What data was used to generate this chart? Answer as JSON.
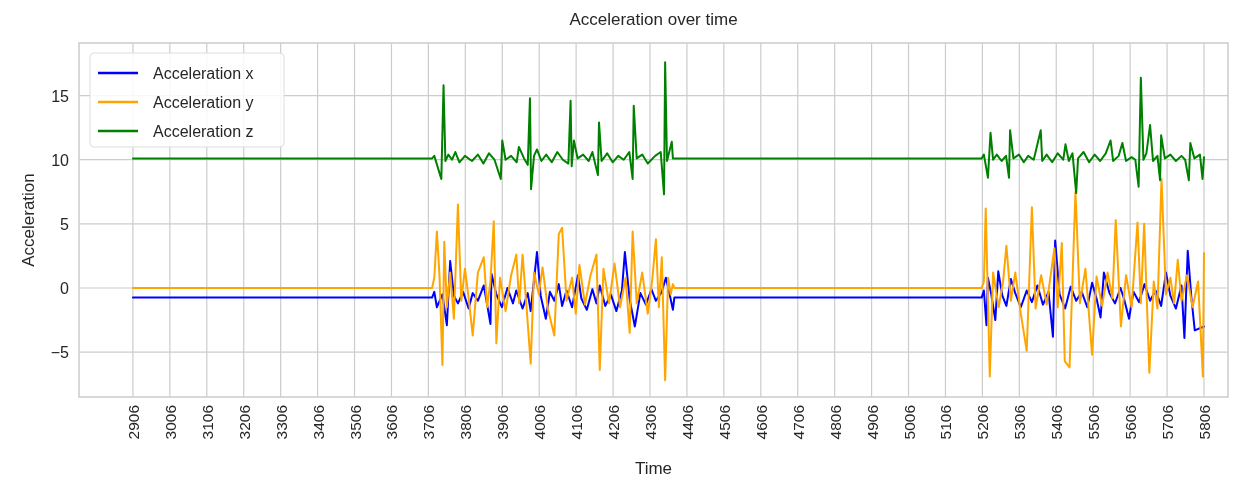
{
  "chart_data": {
    "type": "line",
    "title": "Acceleration over time",
    "xlabel": "Time",
    "ylabel": "Acceleration",
    "xlim": [
      2760,
      5871
    ],
    "ylim": [
      -8.5,
      19.1
    ],
    "xticks": [
      2906,
      3006,
      3106,
      3206,
      3306,
      3406,
      3506,
      3606,
      3706,
      3806,
      3906,
      4006,
      4106,
      4206,
      4306,
      4406,
      4506,
      4606,
      4706,
      4806,
      4906,
      5006,
      5106,
      5206,
      5306,
      5406,
      5506,
      5606,
      5706,
      5806
    ],
    "yticks": [
      -5,
      0,
      5,
      10,
      15
    ],
    "grid": true,
    "legend": "top left",
    "line_style": "solid",
    "marker": "none",
    "series": [
      {
        "name": "Acceleration x",
        "color": "#0000ff",
        "x": [
          2906,
          3716,
          3722,
          3729,
          3744,
          3756,
          3765,
          3775,
          3786,
          3800,
          3815,
          3826,
          3840,
          3856,
          3865,
          3874,
          3877,
          3890,
          3905,
          3920,
          3935,
          3944,
          3961,
          3975,
          3983,
          4000,
          4010,
          4024,
          4035,
          4047,
          4059,
          4068,
          4080,
          4095,
          4111,
          4120,
          4135,
          4150,
          4161,
          4170,
          4185,
          4200,
          4215,
          4230,
          4238,
          4251,
          4265,
          4280,
          4295,
          4310,
          4322,
          4338,
          4349,
          4360,
          4368,
          4372,
          5204,
          5210,
          5217,
          5221,
          5230,
          5241,
          5249,
          5260,
          5271,
          5283,
          5295,
          5310,
          5326,
          5340,
          5355,
          5370,
          5385,
          5397,
          5403,
          5415,
          5430,
          5445,
          5460,
          5475,
          5490,
          5503,
          5515,
          5526,
          5535,
          5550,
          5565,
          5580,
          5590,
          5603,
          5615,
          5630,
          5645,
          5660,
          5675,
          5690,
          5703,
          5715,
          5730,
          5745,
          5753,
          5762,
          5772,
          5781,
          5806
        ],
        "values": [
          -0.75,
          -0.75,
          -0.3,
          -1.5,
          -0.5,
          -2.9,
          2.1,
          -0.6,
          -1.2,
          -0.3,
          -1.6,
          -0.4,
          -1.0,
          0.2,
          -1.3,
          -2.8,
          1.1,
          -0.5,
          -1.5,
          0.0,
          -1.2,
          -0.2,
          -1.6,
          -0.4,
          -1.8,
          2.8,
          -0.6,
          -2.4,
          -0.3,
          -1.0,
          0.3,
          -1.4,
          -0.2,
          -1.5,
          1.0,
          -0.8,
          -1.7,
          -0.1,
          -1.2,
          0.2,
          -1.4,
          -0.5,
          -1.8,
          -0.2,
          2.8,
          -0.9,
          -3.0,
          -0.4,
          -1.3,
          -0.1,
          -1.0,
          -0.3,
          0.8,
          -0.6,
          -1.7,
          -0.75,
          -0.75,
          -0.2,
          -2.9,
          0.8,
          -0.5,
          -2.5,
          1.3,
          -0.6,
          -1.4,
          0.7,
          -0.4,
          -1.5,
          -0.2,
          -1.1,
          0.2,
          -1.3,
          -0.3,
          -3.8,
          3.7,
          -0.5,
          -1.6,
          0.1,
          -1.0,
          -0.3,
          -1.5,
          0.4,
          -0.8,
          -2.3,
          1.2,
          -0.4,
          -1.2,
          0.0,
          -0.9,
          -2.4,
          -0.3,
          -1.1,
          0.3,
          -1.0,
          -0.2,
          -1.4,
          1.2,
          -0.6,
          -1.6,
          0.2,
          -3.9,
          2.9,
          -0.8,
          -3.3,
          -3.0
        ]
      },
      {
        "name": "Acceleration y",
        "color": "#ffa500",
        "x": [
          2906,
          3716,
          3722,
          3729,
          3736,
          3744,
          3749,
          3756,
          3765,
          3775,
          3786,
          3795,
          3805,
          3815,
          3826,
          3840,
          3856,
          3865,
          3874,
          3883,
          3890,
          3900,
          3915,
          3930,
          3944,
          3952,
          3961,
          3970,
          3983,
          3992,
          4005,
          4015,
          4030,
          4047,
          4059,
          4068,
          4080,
          4095,
          4105,
          4115,
          4130,
          4145,
          4161,
          4170,
          4180,
          4195,
          4210,
          4225,
          4240,
          4251,
          4259,
          4270,
          4285,
          4300,
          4312,
          4322,
          4330,
          4338,
          4347,
          4355,
          4362,
          4368,
          4372,
          5204,
          5210,
          5215,
          5226,
          5235,
          5250,
          5262,
          5271,
          5283,
          5295,
          5310,
          5326,
          5340,
          5350,
          5365,
          5380,
          5390,
          5401,
          5410,
          5421,
          5429,
          5442,
          5458,
          5470,
          5485,
          5503,
          5515,
          5530,
          5545,
          5558,
          5567,
          5581,
          5595,
          5610,
          5626,
          5635,
          5644,
          5658,
          5670,
          5680,
          5691,
          5703,
          5715,
          5725,
          5735,
          5745,
          5760,
          5775,
          5790,
          5803,
          5806
        ],
        "values": [
          0.0,
          0.0,
          0.8,
          4.4,
          1.0,
          -6.0,
          3.6,
          -1.5,
          1.2,
          -2.4,
          6.5,
          -1.0,
          1.5,
          -0.8,
          -3.7,
          1.2,
          2.4,
          -1.5,
          0.5,
          5.2,
          -4.3,
          0.8,
          -1.8,
          1.0,
          2.6,
          -1.2,
          2.6,
          -0.8,
          -5.9,
          1.2,
          -0.5,
          1.6,
          -1.7,
          -3.7,
          4.2,
          4.7,
          -1.0,
          0.8,
          -2.0,
          1.8,
          -1.3,
          1.0,
          2.6,
          -6.4,
          1.5,
          -1.2,
          1.9,
          -1.5,
          0.8,
          -3.5,
          4.4,
          -1.2,
          1.2,
          -2.0,
          0.6,
          3.8,
          -1.5,
          2.4,
          -7.2,
          0.8,
          -0.5,
          0.3,
          0.0,
          0.0,
          0.5,
          6.2,
          -6.9,
          1.2,
          -1.5,
          0.5,
          3.3,
          -1.0,
          1.2,
          -2.0,
          -4.9,
          6.3,
          -1.6,
          1.0,
          -1.3,
          0.8,
          3.1,
          -1.5,
          3.5,
          -5.7,
          -6.2,
          7.5,
          -1.2,
          1.5,
          -5.2,
          0.9,
          -1.4,
          1.2,
          -0.8,
          5.3,
          -3.0,
          1.0,
          -1.5,
          5.1,
          -1.2,
          5.0,
          -6.6,
          0.5,
          -1.6,
          8.5,
          -0.5,
          0.8,
          -1.2,
          2.2,
          -1.0,
          1.0,
          -1.5,
          0.5,
          -6.9,
          2.7
        ]
      },
      {
        "name": "Acceleration z",
        "color": "#008000",
        "x": [
          2906,
          3716,
          3722,
          3741,
          3747,
          3752,
          3760,
          3770,
          3779,
          3790,
          3805,
          3824,
          3840,
          3855,
          3870,
          3885,
          3902,
          3906,
          3915,
          3930,
          3945,
          3951,
          3965,
          3975,
          3981,
          3984,
          3992,
          4000,
          4012,
          4025,
          4040,
          4055,
          4070,
          4085,
          4091,
          4094,
          4100,
          4110,
          4125,
          4140,
          4150,
          4165,
          4168,
          4175,
          4190,
          4205,
          4220,
          4235,
          4250,
          4259,
          4262,
          4270,
          4285,
          4300,
          4320,
          4335,
          4344,
          4347,
          4352,
          4365,
          4368,
          5204,
          5210,
          5221,
          5228,
          5235,
          5245,
          5258,
          5270,
          5278,
          5281,
          5290,
          5305,
          5318,
          5330,
          5345,
          5364,
          5368,
          5380,
          5395,
          5410,
          5425,
          5431,
          5440,
          5450,
          5460,
          5465,
          5480,
          5495,
          5510,
          5525,
          5540,
          5553,
          5560,
          5575,
          5585,
          5595,
          5610,
          5620,
          5629,
          5635,
          5642,
          5650,
          5660,
          5668,
          5680,
          5687,
          5690,
          5700,
          5715,
          5730,
          5745,
          5755,
          5765,
          5769,
          5780,
          5795,
          5802,
          5806
        ],
        "values": [
          10.1,
          10.1,
          10.3,
          8.5,
          15.8,
          9.9,
          10.4,
          10.0,
          10.6,
          9.8,
          10.3,
          9.9,
          10.4,
          9.7,
          10.5,
          10.0,
          8.5,
          11.5,
          10.0,
          10.3,
          9.8,
          11.0,
          10.1,
          9.6,
          14.8,
          7.7,
          10.3,
          10.8,
          9.9,
          10.4,
          9.8,
          10.6,
          10.0,
          9.7,
          14.6,
          9.5,
          11.5,
          10.1,
          10.4,
          9.9,
          10.6,
          8.8,
          12.9,
          9.9,
          10.5,
          9.8,
          10.3,
          10.0,
          10.6,
          8.5,
          14.2,
          10.1,
          10.4,
          9.7,
          10.3,
          10.6,
          7.3,
          17.6,
          9.9,
          11.4,
          10.1,
          10.1,
          10.4,
          8.6,
          12.1,
          10.0,
          10.4,
          9.9,
          10.3,
          8.6,
          12.3,
          10.1,
          10.4,
          9.8,
          10.3,
          10.0,
          12.3,
          9.9,
          10.4,
          9.8,
          10.5,
          10.0,
          11.2,
          9.9,
          10.5,
          7.4,
          10.1,
          10.6,
          9.8,
          10.4,
          9.9,
          10.5,
          11.5,
          9.9,
          10.3,
          11.3,
          9.9,
          10.2,
          10.0,
          7.9,
          16.4,
          10.0,
          10.5,
          12.7,
          9.9,
          10.3,
          8.4,
          11.9,
          10.1,
          10.4,
          9.9,
          10.3,
          10.0,
          8.4,
          11.3,
          10.1,
          10.4,
          8.5,
          10.2
        ]
      }
    ]
  }
}
